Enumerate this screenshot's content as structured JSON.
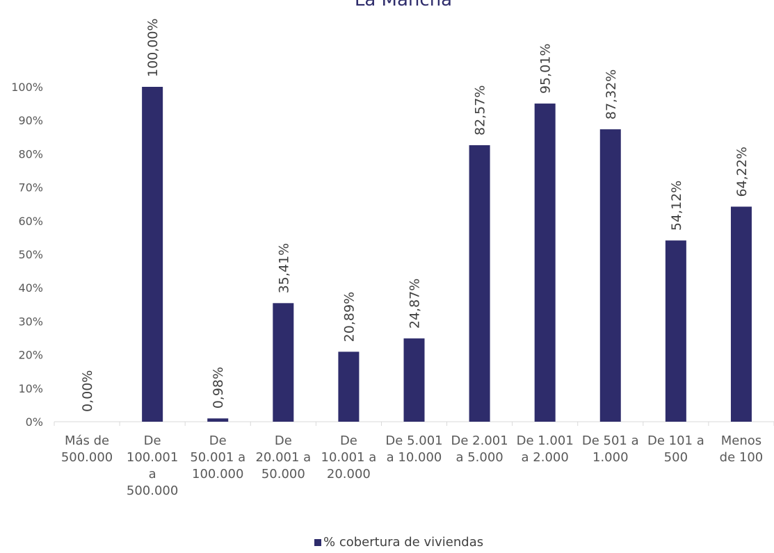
{
  "chart_data": {
    "type": "bar",
    "title": "La Mancha",
    "categories": [
      [
        "Más de",
        "500.000"
      ],
      [
        "De",
        "100.001",
        "a",
        "500.000"
      ],
      [
        "De",
        "50.001 a",
        "100.000"
      ],
      [
        "De",
        "20.001 a",
        "50.000"
      ],
      [
        "De",
        "10.001 a",
        "20.000"
      ],
      [
        "De 5.001",
        "a 10.000"
      ],
      [
        "De 2.001",
        "a 5.000"
      ],
      [
        "De 1.001",
        "a 2.000"
      ],
      [
        "De 501 a",
        "1.000"
      ],
      [
        "De 101 a",
        "500"
      ],
      [
        "Menos",
        "de 100"
      ]
    ],
    "series": [
      {
        "name": "% cobertura de viviendas",
        "color": "#2e2c6b",
        "values": [
          0.0,
          100.0,
          0.98,
          35.41,
          20.89,
          24.87,
          82.57,
          95.01,
          87.32,
          54.12,
          64.22
        ],
        "labels": [
          "0,00%",
          "100,00%",
          "0,98%",
          "35,41%",
          "20,89%",
          "24,87%",
          "82,57%",
          "95,01%",
          "87,32%",
          "54,12%",
          "64,22%"
        ]
      }
    ],
    "ylim": [
      0,
      100
    ],
    "yticks": [
      "0%",
      "10%",
      "20%",
      "30%",
      "40%",
      "50%",
      "60%",
      "70%",
      "80%",
      "90%",
      "100%"
    ],
    "xlabel": "",
    "ylabel": "",
    "grid": false,
    "legend_position": "bottom"
  }
}
